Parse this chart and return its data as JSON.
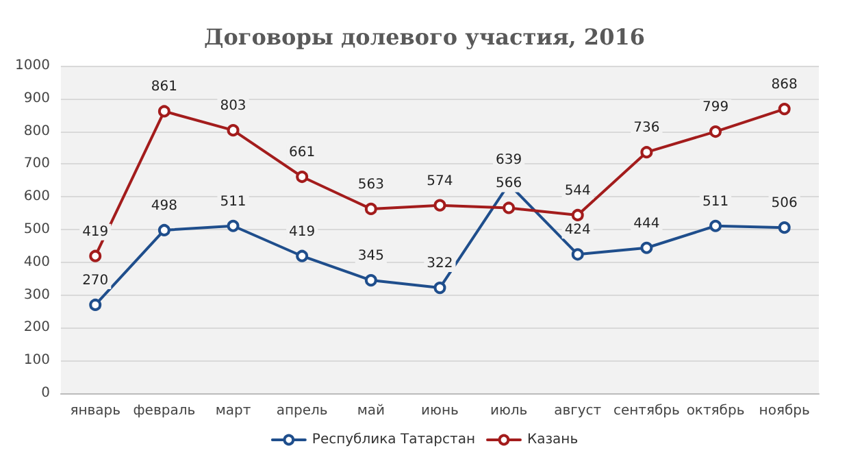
{
  "chart_data": {
    "type": "line",
    "title": "Договоры долевого участия, 2016",
    "categories": [
      "январь",
      "февраль",
      "март",
      "апрель",
      "май",
      "июнь",
      "июль",
      "август",
      "сентябрь",
      "октябрь",
      "ноябрь"
    ],
    "series": [
      {
        "name": "Республика Татарстан",
        "color": "#1f4e8c",
        "values": [
          270,
          498,
          511,
          419,
          345,
          322,
          639,
          424,
          444,
          511,
          506
        ]
      },
      {
        "name": "Казань",
        "color": "#a31c1c",
        "values": [
          419,
          861,
          803,
          661,
          563,
          574,
          566,
          544,
          736,
          799,
          868
        ]
      }
    ],
    "ylim": [
      0,
      1000
    ],
    "yticks": [
      0,
      100,
      200,
      300,
      400,
      500,
      600,
      700,
      800,
      900,
      1000
    ],
    "grid": "y",
    "legend": "bottom",
    "marker": "circle",
    "line_style": "solid",
    "data_labels": true
  }
}
